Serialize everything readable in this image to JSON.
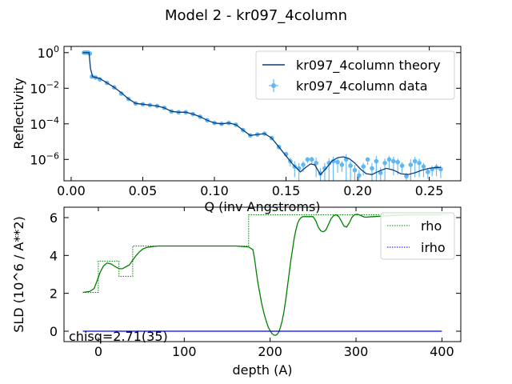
{
  "figure": {
    "suptitle": "Model 2 - kr097_4column"
  },
  "chart_data": [
    {
      "type": "line",
      "title": "",
      "xlabel": "Q (inv Angstroms)",
      "ylabel": "Reflectivity",
      "xlim": [
        -0.005,
        0.272
      ],
      "ylim_log10": [
        -7.2,
        0.35
      ],
      "yscale": "log",
      "xticks": [
        0.0,
        0.05,
        0.1,
        0.15,
        0.2,
        0.25
      ],
      "xtick_labels": [
        "0.00",
        "0.05",
        "0.10",
        "0.15",
        "0.20",
        "0.25"
      ],
      "yticks_log10": [
        0,
        -2,
        -4,
        -6
      ],
      "grid": false,
      "legend_position": "top-right",
      "series": [
        {
          "name": "kr097_4column theory",
          "kind": "line",
          "color": "#0d3b7a",
          "x": [
            0.008,
            0.0125,
            0.0135,
            0.015,
            0.02,
            0.025,
            0.03,
            0.035,
            0.04,
            0.045,
            0.05,
            0.055,
            0.06,
            0.065,
            0.07,
            0.075,
            0.08,
            0.085,
            0.09,
            0.095,
            0.1,
            0.105,
            0.11,
            0.115,
            0.12,
            0.125,
            0.13,
            0.135,
            0.14,
            0.145,
            0.15,
            0.155,
            0.16,
            0.163,
            0.167,
            0.17,
            0.174,
            0.178,
            0.182,
            0.186,
            0.19,
            0.194,
            0.198,
            0.202,
            0.206,
            0.21,
            0.215,
            0.22,
            0.225,
            0.23,
            0.235,
            0.24,
            0.245,
            0.25,
            0.255,
            0.258
          ],
          "log10_y": [
            0.0,
            0.0,
            -0.9,
            -1.35,
            -1.45,
            -1.7,
            -1.95,
            -2.25,
            -2.6,
            -2.85,
            -2.9,
            -2.95,
            -3.0,
            -3.1,
            -3.3,
            -3.35,
            -3.35,
            -3.45,
            -3.6,
            -3.8,
            -3.95,
            -4.0,
            -3.95,
            -4.05,
            -4.35,
            -4.65,
            -4.6,
            -4.55,
            -4.8,
            -5.3,
            -5.8,
            -6.3,
            -6.7,
            -6.5,
            -6.25,
            -6.3,
            -6.85,
            -6.5,
            -6.1,
            -5.9,
            -5.85,
            -5.95,
            -6.2,
            -6.55,
            -6.8,
            -6.85,
            -6.65,
            -6.5,
            -6.6,
            -6.8,
            -6.85,
            -6.75,
            -6.6,
            -6.5,
            -6.45,
            -6.45
          ]
        },
        {
          "name": "kr097_4column data",
          "kind": "points-with-errorbars",
          "color": "#5fb8f4",
          "x": [
            0.009,
            0.01,
            0.011,
            0.012,
            0.013,
            0.0145,
            0.017,
            0.02,
            0.025,
            0.03,
            0.035,
            0.04,
            0.045,
            0.05,
            0.055,
            0.06,
            0.065,
            0.07,
            0.075,
            0.08,
            0.085,
            0.09,
            0.095,
            0.1,
            0.105,
            0.11,
            0.115,
            0.12,
            0.125,
            0.13,
            0.135,
            0.14,
            0.145,
            0.15,
            0.153,
            0.156,
            0.159,
            0.162,
            0.165,
            0.168,
            0.171,
            0.174,
            0.177,
            0.18,
            0.183,
            0.186,
            0.189,
            0.192,
            0.195,
            0.198,
            0.201,
            0.204,
            0.207,
            0.21,
            0.213,
            0.216,
            0.219,
            0.222,
            0.225,
            0.228,
            0.231,
            0.234,
            0.237,
            0.24,
            0.243,
            0.246,
            0.249,
            0.252,
            0.255,
            0.258
          ],
          "log10_y": [
            0.0,
            0.0,
            0.0,
            0.0,
            -0.05,
            -1.35,
            -1.4,
            -1.5,
            -1.7,
            -1.95,
            -2.3,
            -2.6,
            -2.85,
            -2.9,
            -2.95,
            -3.0,
            -3.1,
            -3.3,
            -3.35,
            -3.35,
            -3.45,
            -3.6,
            -3.8,
            -3.95,
            -4.0,
            -3.95,
            -4.05,
            -4.35,
            -4.65,
            -4.6,
            -4.55,
            -4.8,
            -5.3,
            -5.7,
            -6.1,
            -6.4,
            -6.5,
            -6.3,
            -6.0,
            -6.0,
            -6.2,
            -6.8,
            -6.5,
            -6.2,
            -6.1,
            -6.15,
            -6.3,
            -6.0,
            -6.35,
            -6.6,
            -6.9,
            -6.4,
            -6.0,
            -6.5,
            -6.1,
            -6.75,
            -6.2,
            -6.0,
            -6.1,
            -6.15,
            -6.35,
            -6.95,
            -6.3,
            -6.1,
            -6.2,
            -6.4,
            -6.7,
            -6.55,
            -6.45,
            -6.55
          ],
          "log10_yerr_low": [
            0.05,
            0.05,
            0.05,
            0.05,
            0.05,
            0.1,
            0.05,
            0.05,
            0.05,
            0.05,
            0.05,
            0.05,
            0.05,
            0.05,
            0.05,
            0.05,
            0.05,
            0.05,
            0.05,
            0.05,
            0.05,
            0.05,
            0.05,
            0.05,
            0.05,
            0.05,
            0.05,
            0.05,
            0.05,
            0.05,
            0.05,
            0.05,
            0.1,
            0.15,
            0.3,
            0.6,
            1.2,
            0.4,
            0.2,
            0.3,
            0.8,
            1.5,
            0.8,
            1.0,
            1.1,
            0.6,
            0.4,
            1.3,
            0.9,
            1.2,
            1.0,
            0.5,
            0.3,
            1.1,
            1.2,
            0.5,
            1.0,
            0.5,
            0.8,
            0.7,
            0.4,
            0.3,
            1.2,
            0.9,
            0.8,
            0.6,
            0.4,
            0.4,
            0.5,
            0.5
          ],
          "log10_yerr_high": [
            0.05,
            0.05,
            0.05,
            0.05,
            0.05,
            0.1,
            0.05,
            0.05,
            0.05,
            0.05,
            0.05,
            0.05,
            0.05,
            0.05,
            0.05,
            0.05,
            0.05,
            0.05,
            0.05,
            0.05,
            0.05,
            0.05,
            0.05,
            0.05,
            0.05,
            0.05,
            0.05,
            0.05,
            0.05,
            0.05,
            0.05,
            0.05,
            0.1,
            0.1,
            0.2,
            0.3,
            0.3,
            0.2,
            0.1,
            0.15,
            0.3,
            0.3,
            0.3,
            0.25,
            0.25,
            0.2,
            0.2,
            0.3,
            0.25,
            0.3,
            0.3,
            0.2,
            0.1,
            0.3,
            0.3,
            0.3,
            0.25,
            0.2,
            0.25,
            0.2,
            0.2,
            0.2,
            0.3,
            0.25,
            0.25,
            0.2,
            0.2,
            0.2,
            0.2,
            0.2
          ]
        }
      ]
    },
    {
      "type": "line",
      "title": "",
      "xlabel": "depth (A)",
      "ylabel": "SLD (10^6 / A**2)",
      "xlim": [
        -40,
        422
      ],
      "ylim": [
        -0.55,
        6.55
      ],
      "xticks": [
        0,
        100,
        200,
        300,
        400
      ],
      "yticks": [
        0,
        2,
        4,
        6
      ],
      "grid": false,
      "legend_position": "top-right",
      "annotation": "chisq=2.71(35)",
      "series": [
        {
          "name": "rho",
          "kind": "smooth",
          "color": "#008000",
          "x": [
            -18,
            -10,
            -5,
            -2,
            2,
            6,
            10,
            15,
            20,
            24,
            28,
            32,
            36,
            40,
            44,
            48,
            52,
            56,
            60,
            65,
            70,
            75,
            80,
            90,
            100,
            120,
            140,
            160,
            175,
            180,
            182,
            184,
            186,
            188,
            190,
            192,
            194,
            196,
            198,
            200,
            202,
            204,
            206,
            208,
            210,
            212,
            214,
            216,
            218,
            220,
            222,
            224,
            226,
            228,
            230,
            232,
            234,
            236,
            238,
            240,
            242,
            244,
            246,
            248,
            250,
            253,
            256,
            259,
            262,
            265,
            268,
            271,
            274,
            277,
            280,
            283,
            286,
            289,
            292,
            295,
            298,
            302,
            306,
            310,
            320,
            340,
            360,
            380,
            400
          ],
          "y": [
            2.05,
            2.1,
            2.25,
            2.6,
            3.1,
            3.45,
            3.6,
            3.55,
            3.4,
            3.3,
            3.3,
            3.4,
            3.5,
            3.75,
            4.0,
            4.2,
            4.35,
            4.42,
            4.45,
            4.48,
            4.5,
            4.5,
            4.5,
            4.5,
            4.5,
            4.5,
            4.5,
            4.5,
            4.45,
            4.3,
            3.8,
            3.1,
            2.5,
            2.0,
            1.5,
            1.1,
            0.75,
            0.45,
            0.2,
            0.02,
            -0.12,
            -0.2,
            -0.22,
            -0.18,
            -0.05,
            0.2,
            0.55,
            1.0,
            1.6,
            2.3,
            3.0,
            3.7,
            4.3,
            4.9,
            5.35,
            5.7,
            5.9,
            6.0,
            6.05,
            6.05,
            6.05,
            6.05,
            6.05,
            6.05,
            6.05,
            5.85,
            5.5,
            5.3,
            5.25,
            5.35,
            5.65,
            5.95,
            6.1,
            6.15,
            6.05,
            5.8,
            5.55,
            5.5,
            5.7,
            6.0,
            6.15,
            6.18,
            6.1,
            6.02,
            6.05,
            6.1,
            6.15,
            6.15,
            6.15
          ]
        },
        {
          "name": "rho",
          "kind": "profile-steps",
          "color": "#008000",
          "x": [
            -18,
            0,
            0,
            24,
            24,
            40,
            40,
            175,
            175,
            410
          ],
          "y": [
            2.05,
            2.05,
            3.7,
            3.7,
            2.9,
            2.9,
            4.5,
            4.5,
            6.15,
            6.15
          ]
        },
        {
          "name": "irho",
          "kind": "steps",
          "color": "#0000ff",
          "x": [
            -18,
            400
          ],
          "y": [
            0.0,
            0.0
          ]
        }
      ]
    }
  ]
}
